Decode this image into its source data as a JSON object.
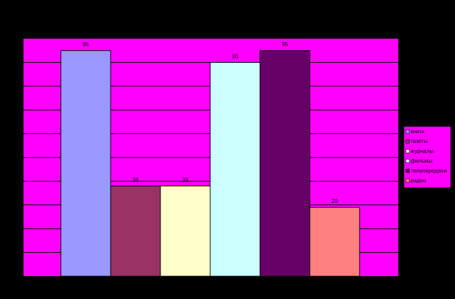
{
  "chart_data": {
    "type": "bar",
    "categories": [
      "книги",
      "газеты",
      "журналы",
      "фильмы",
      "телепередачи",
      "радио"
    ],
    "values": [
      95,
      38,
      38,
      90,
      95,
      29
    ],
    "ylim": [
      0,
      100
    ],
    "grid": true,
    "legend": "right",
    "colors": {
      "plot_bg": "#FF00FF",
      "page_bg": "#000000",
      "grid": "#000000",
      "bars": [
        "#9999FF",
        "#993366",
        "#FFFFCC",
        "#CCFFFF",
        "#660066",
        "#FF8080"
      ]
    }
  }
}
